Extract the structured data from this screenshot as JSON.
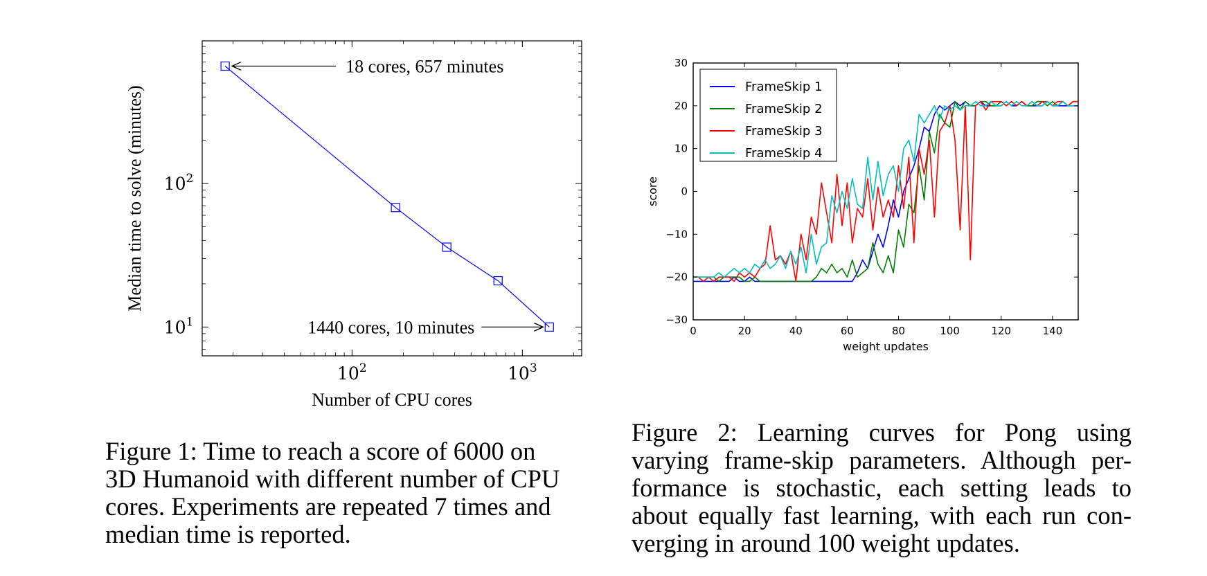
{
  "figure1": {
    "chart_data": {
      "type": "line",
      "xscale": "log",
      "yscale": "log",
      "xlabel": "Number of CPU cores",
      "ylabel": "Median time to solve (minutes)",
      "xlim": [
        13.2,
        2230
      ],
      "ylim": [
        6.3,
        985
      ],
      "xticks": [
        {
          "value": 100,
          "base": "10",
          "exp": "2"
        },
        {
          "value": 1000,
          "base": "10",
          "exp": "3"
        }
      ],
      "yticks": [
        {
          "value": 10,
          "base": "10",
          "exp": "1"
        },
        {
          "value": 100,
          "base": "10",
          "exp": "2"
        }
      ],
      "series": [
        {
          "color": "#0000ff",
          "marker": "square",
          "x": [
            18,
            180,
            360,
            720,
            1440
          ],
          "y": [
            657,
            68,
            36,
            21,
            10
          ]
        }
      ],
      "annotations": [
        {
          "text": "18 cores, 657 minutes",
          "x": 18,
          "y": 657
        },
        {
          "text": "1440 cores, 10 minutes",
          "x": 1440,
          "y": 10
        }
      ]
    },
    "caption": [
      "Figure 1: Time to reach a score of 6000 on",
      "3D Humanoid with different number of CPU",
      "cores. Experiments are repeated 7 times and",
      "median time is reported."
    ]
  },
  "figure2": {
    "chart_data": {
      "type": "line",
      "xlabel": "weight updates",
      "ylabel": "score",
      "xlim": [
        0,
        150
      ],
      "ylim": [
        -30,
        30
      ],
      "xticks": [
        "0",
        "20",
        "40",
        "60",
        "80",
        "100",
        "120",
        "140"
      ],
      "yticks": [
        "−30",
        "−20",
        "−10",
        "0",
        "10",
        "20",
        "30"
      ],
      "legend_position": "top-left",
      "x": [
        0,
        2,
        4,
        6,
        8,
        10,
        12,
        14,
        16,
        18,
        20,
        22,
        24,
        26,
        28,
        30,
        32,
        34,
        36,
        38,
        40,
        42,
        44,
        46,
        48,
        50,
        52,
        54,
        56,
        58,
        60,
        62,
        64,
        66,
        68,
        70,
        72,
        74,
        76,
        78,
        80,
        82,
        84,
        86,
        88,
        90,
        92,
        94,
        96,
        98,
        100,
        102,
        104,
        106,
        108,
        110,
        112,
        114,
        116,
        118,
        120,
        122,
        124,
        126,
        128,
        130,
        132,
        134,
        136,
        138,
        140,
        142,
        144,
        146,
        148,
        150
      ],
      "series": [
        {
          "name": "FrameSkip 1",
          "color": "#0000ff",
          "values": [
            -21,
            -21,
            -21,
            -21,
            -21,
            -21,
            -21,
            -21,
            -20,
            -21,
            -21,
            -20,
            -21,
            -21,
            -21,
            -21,
            -21,
            -21,
            -21,
            -21,
            -21,
            -21,
            -21,
            -21,
            -21,
            -21,
            -21,
            -21,
            -21,
            -21,
            -21,
            -21,
            -19,
            -16,
            -18,
            -14,
            -10,
            -13,
            -8,
            -2,
            -6,
            0,
            3,
            6,
            10,
            15,
            14,
            18,
            20,
            19,
            20,
            21,
            20,
            21,
            20,
            20,
            21,
            20,
            20,
            20,
            20,
            21,
            20,
            20,
            21,
            20,
            20,
            20,
            20,
            21,
            20,
            20,
            20,
            20,
            20,
            20
          ]
        },
        {
          "name": "FrameSkip 2",
          "color": "#008000",
          "values": [
            -20,
            -20,
            -20,
            -20,
            -20,
            -21,
            -20,
            -20,
            -20,
            -20,
            -21,
            -21,
            -20,
            -21,
            -21,
            -21,
            -21,
            -21,
            -21,
            -21,
            -21,
            -21,
            -21,
            -21,
            -20,
            -18,
            -19,
            -17,
            -19,
            -18,
            -20,
            -16,
            -20,
            -19,
            -18,
            -12,
            -17,
            -19,
            -15,
            -19,
            -9,
            -13,
            -3,
            -5,
            6,
            -2,
            14,
            9,
            18,
            16,
            15,
            21,
            19,
            21,
            20,
            20,
            21,
            21,
            20,
            20,
            21,
            20,
            21,
            20,
            21,
            20,
            20,
            21,
            21,
            20,
            21,
            20,
            21,
            20,
            21,
            21
          ]
        },
        {
          "name": "FrameSkip 3",
          "color": "#ff0000",
          "values": [
            -20,
            -20,
            -21,
            -20,
            -21,
            -20,
            -20,
            -20,
            -21,
            -19,
            -20,
            -19,
            -20,
            -18,
            -17,
            -8,
            -16,
            -15,
            -17,
            -14,
            -21,
            -10,
            -16,
            -6,
            -10,
            2,
            -5,
            -12,
            4,
            -8,
            2,
            -12,
            -4,
            -6,
            3,
            -9,
            1,
            -6,
            -2,
            -6,
            6,
            -4,
            8,
            -12,
            10,
            4,
            12,
            -6,
            14,
            16,
            20,
            12,
            -9,
            20,
            -16,
            20,
            21,
            19,
            21,
            21,
            21,
            20,
            21,
            20,
            21,
            20,
            21,
            20,
            21,
            21,
            20,
            21,
            21,
            20,
            21,
            21
          ]
        },
        {
          "name": "FrameSkip 4",
          "color": "#00bfbf",
          "values": [
            -20,
            -20,
            -20,
            -20,
            -20,
            -19,
            -20,
            -19,
            -18,
            -19,
            -18,
            -19,
            -17,
            -18,
            -16,
            -18,
            -17,
            -15,
            -18,
            -14,
            -17,
            -13,
            -19,
            -10,
            -17,
            -13,
            -12,
            -1,
            -5,
            0,
            -4,
            3,
            -3,
            -4,
            8,
            -2,
            7,
            -1,
            4,
            6,
            0,
            10,
            12,
            7,
            18,
            16,
            18,
            20,
            17,
            20,
            19,
            20,
            19,
            20,
            20,
            21,
            20,
            20,
            21,
            20,
            20,
            21,
            20,
            21,
            20,
            20,
            21,
            20,
            20,
            21,
            20,
            20,
            21,
            20,
            20,
            20
          ]
        }
      ]
    },
    "caption": [
      "Figure 2: Learning curves for Pong using",
      "varying frame-skip parameters. Although per-",
      "formance is stochastic, each setting leads to",
      "about equally fast learning, with each run con-",
      "verging in around 100 weight updates."
    ]
  }
}
